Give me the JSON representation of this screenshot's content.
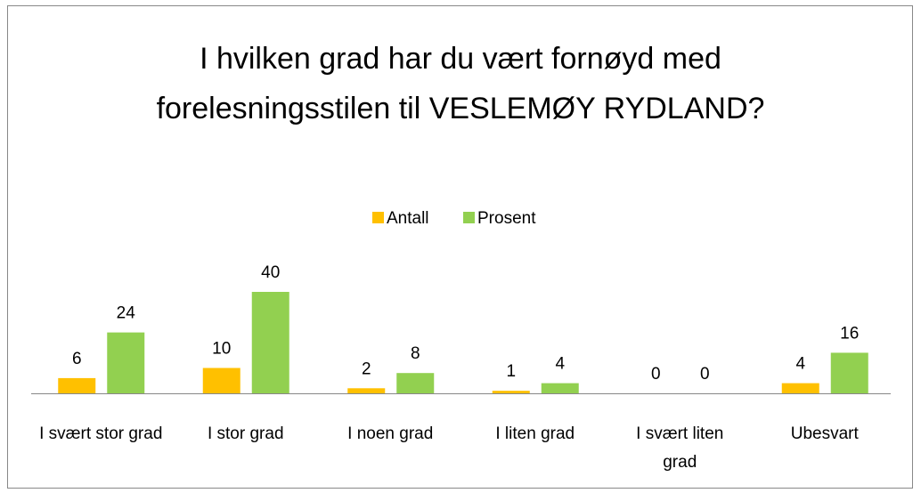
{
  "chart_data": {
    "type": "bar",
    "title": "I hvilken grad har du vært fornøyd med forelesningsstilen til VESLEMØY RYDLAND?",
    "categories": [
      "I svært stor grad",
      "I stor grad",
      "I noen grad",
      "I liten grad",
      "I svært liten grad",
      "Ubesvart"
    ],
    "series": [
      {
        "name": "Antall",
        "color": "#ffc000",
        "values": [
          6,
          10,
          2,
          1,
          0,
          4
        ]
      },
      {
        "name": "Prosent",
        "color": "#92d050",
        "values": [
          24,
          40,
          8,
          4,
          0,
          16
        ]
      }
    ],
    "legend": "top"
  }
}
